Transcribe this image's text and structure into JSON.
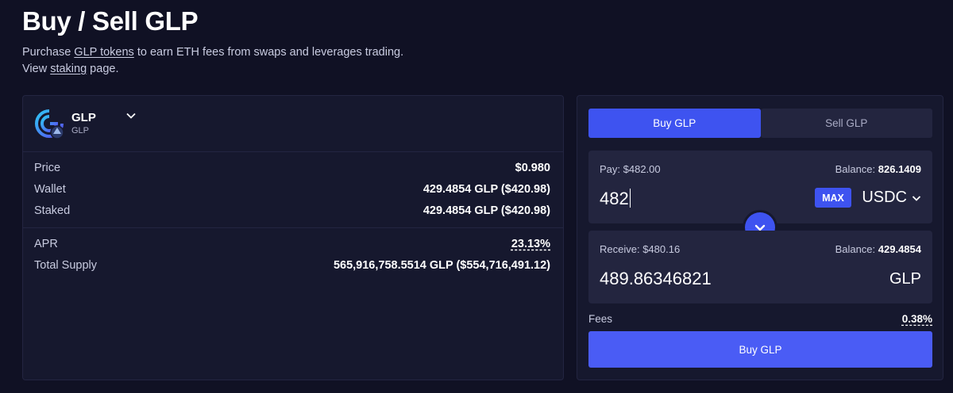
{
  "header": {
    "title": "Buy / Sell GLP",
    "line1_prefix": "Purchase ",
    "line1_link": "GLP tokens",
    "line1_suffix": " to earn ETH fees from swaps and leverages trading.",
    "line2_prefix": "View ",
    "line2_link": "staking",
    "line2_suffix": " page."
  },
  "token": {
    "name": "GLP",
    "symbol": "GLP",
    "icon": "glp-logo-icon"
  },
  "info": {
    "rows": [
      {
        "label": "Price",
        "value": "$0.980"
      },
      {
        "label": "Wallet",
        "value": "429.4854 GLP ($420.98)"
      },
      {
        "label": "Staked",
        "value": "429.4854 GLP ($420.98)"
      }
    ],
    "apr_label": "APR",
    "apr_value": "23.13%",
    "supply_label": "Total Supply",
    "supply_value": "565,916,758.5514 GLP ($554,716,491.12)"
  },
  "tabs": [
    {
      "label": "Buy GLP",
      "active": true
    },
    {
      "label": "Sell GLP",
      "active": false
    }
  ],
  "pay": {
    "label": "Pay: $482.00",
    "balance_label": "Balance: ",
    "balance_value": "826.1409",
    "amount": "482",
    "max_label": "MAX",
    "token": "USDC"
  },
  "receive": {
    "label": "Receive: $480.16",
    "balance_label": "Balance: ",
    "balance_value": "429.4854",
    "amount": "489.86346821",
    "token": "GLP"
  },
  "fees": {
    "label": "Fees",
    "value": "0.38%"
  },
  "action": {
    "label": "Buy GLP"
  },
  "colors": {
    "accent": "#3e53f0",
    "background": "#101124",
    "panel": "#16182e",
    "box": "#23253f"
  }
}
